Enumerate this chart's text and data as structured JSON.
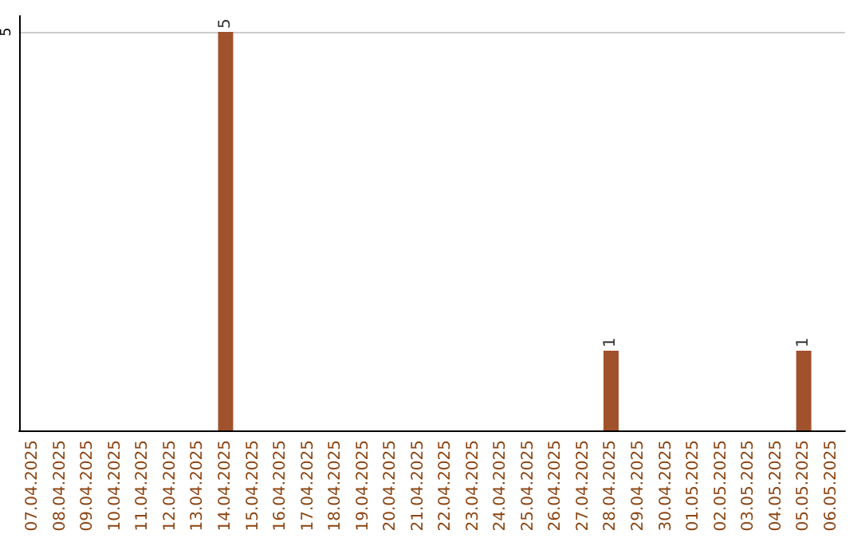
{
  "chart_data": {
    "type": "bar",
    "categories": [
      "07.04.2025",
      "08.04.2025",
      "09.04.2025",
      "10.04.2025",
      "11.04.2025",
      "12.04.2025",
      "13.04.2025",
      "14.04.2025",
      "15.04.2025",
      "16.04.2025",
      "17.04.2025",
      "18.04.2025",
      "19.04.2025",
      "20.04.2025",
      "21.04.2025",
      "22.04.2025",
      "23.04.2025",
      "24.04.2025",
      "25.04.2025",
      "26.04.2025",
      "27.04.2025",
      "28.04.2025",
      "29.04.2025",
      "30.04.2025",
      "01.05.2025",
      "02.05.2025",
      "03.05.2025",
      "04.05.2025",
      "05.05.2025",
      "06.05.2025"
    ],
    "values": [
      0,
      0,
      0,
      0,
      0,
      0,
      0,
      5,
      0,
      0,
      0,
      0,
      0,
      0,
      0,
      0,
      0,
      0,
      0,
      0,
      0,
      1,
      0,
      0,
      0,
      0,
      0,
      0,
      1,
      0
    ],
    "value_labels": [
      null,
      null,
      null,
      null,
      null,
      null,
      null,
      "5",
      null,
      null,
      null,
      null,
      null,
      null,
      null,
      null,
      null,
      null,
      null,
      null,
      null,
      "1",
      null,
      null,
      null,
      null,
      null,
      null,
      "1",
      null
    ],
    "color": "#a0522d",
    "ylim": [
      0,
      5.2
    ],
    "yticks": [
      5
    ],
    "grid": "y"
  }
}
